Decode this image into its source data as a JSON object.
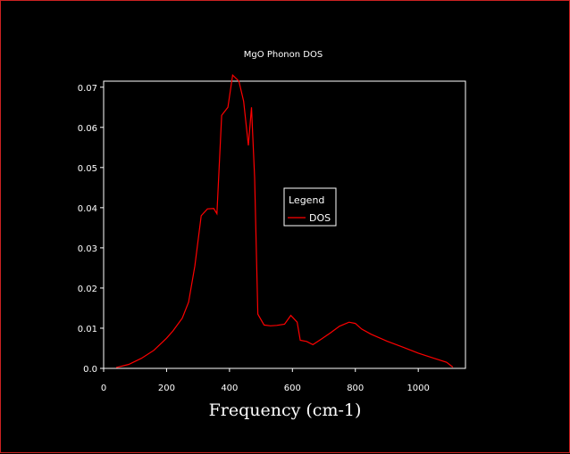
{
  "chart_data": {
    "type": "line",
    "title": "MgO Phonon DOS",
    "xlabel": "Frequency (cm-1)",
    "ylabel": "",
    "xlim": [
      0,
      1150
    ],
    "ylim": [
      0,
      0.0715
    ],
    "x_ticks": [
      0,
      200,
      400,
      600,
      800,
      1000
    ],
    "x_tick_labels": [
      "0",
      "200",
      "400",
      "600",
      "800",
      "1000"
    ],
    "y_ticks": [
      0,
      0.01,
      0.02,
      0.03,
      0.04,
      0.05,
      0.06,
      0.07
    ],
    "y_tick_labels": [
      "0.0",
      "0.01",
      "0.02",
      "0.03",
      "0.04",
      "0.05",
      "0.06",
      "0.07"
    ],
    "grid": false,
    "legend": {
      "title": "Legend",
      "placement": "center-right",
      "entries": [
        "DOS"
      ]
    },
    "series": [
      {
        "name": "DOS",
        "color": "#ff0000",
        "x": [
          40,
          80,
          120,
          160,
          200,
          220,
          250,
          270,
          290,
          310,
          330,
          350,
          360,
          375,
          395,
          410,
          430,
          445,
          460,
          470,
          480,
          490,
          510,
          530,
          550,
          575,
          595,
          615,
          625,
          645,
          665,
          690,
          720,
          750,
          780,
          800,
          820,
          850,
          900,
          950,
          1000,
          1050,
          1090,
          1110
        ],
        "y": [
          0.0002,
          0.001,
          0.0025,
          0.0045,
          0.0075,
          0.0093,
          0.0125,
          0.0165,
          0.0255,
          0.038,
          0.0397,
          0.0398,
          0.0385,
          0.063,
          0.065,
          0.073,
          0.0715,
          0.0665,
          0.0555,
          0.065,
          0.0475,
          0.0135,
          0.0108,
          0.0106,
          0.0107,
          0.011,
          0.0132,
          0.0115,
          0.007,
          0.0067,
          0.0059,
          0.0072,
          0.0088,
          0.0105,
          0.0115,
          0.0112,
          0.0098,
          0.0085,
          0.0068,
          0.0053,
          0.0038,
          0.0025,
          0.0015,
          0.0003
        ]
      }
    ]
  }
}
